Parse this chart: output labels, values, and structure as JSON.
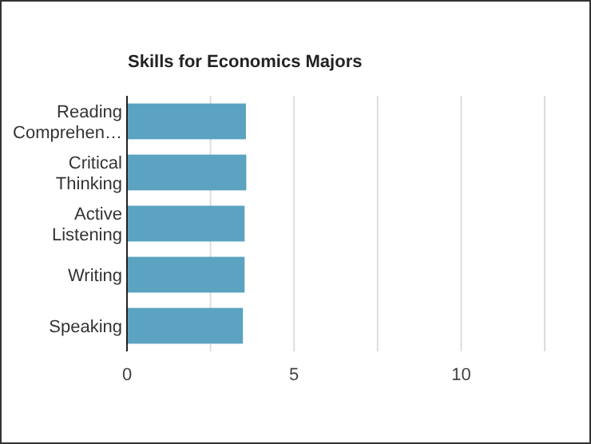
{
  "chart_data": {
    "type": "bar",
    "orientation": "horizontal",
    "title": "Skills for Economics Majors",
    "categories": [
      "Reading Comprehen…",
      "Critical Thinking",
      "Active Listening",
      "Writing",
      "Speaking"
    ],
    "values": [
      3.56,
      3.57,
      3.52,
      3.52,
      3.47
    ],
    "color": "#5ba3c0",
    "xlim": [
      0,
      12.5
    ],
    "xticks": [
      0,
      {
        "value": 2.5,
        "label": null
      },
      5,
      {
        "value": 7.5,
        "label": null
      },
      10,
      {
        "value": 12.5,
        "label": null
      }
    ],
    "grid": "x"
  }
}
